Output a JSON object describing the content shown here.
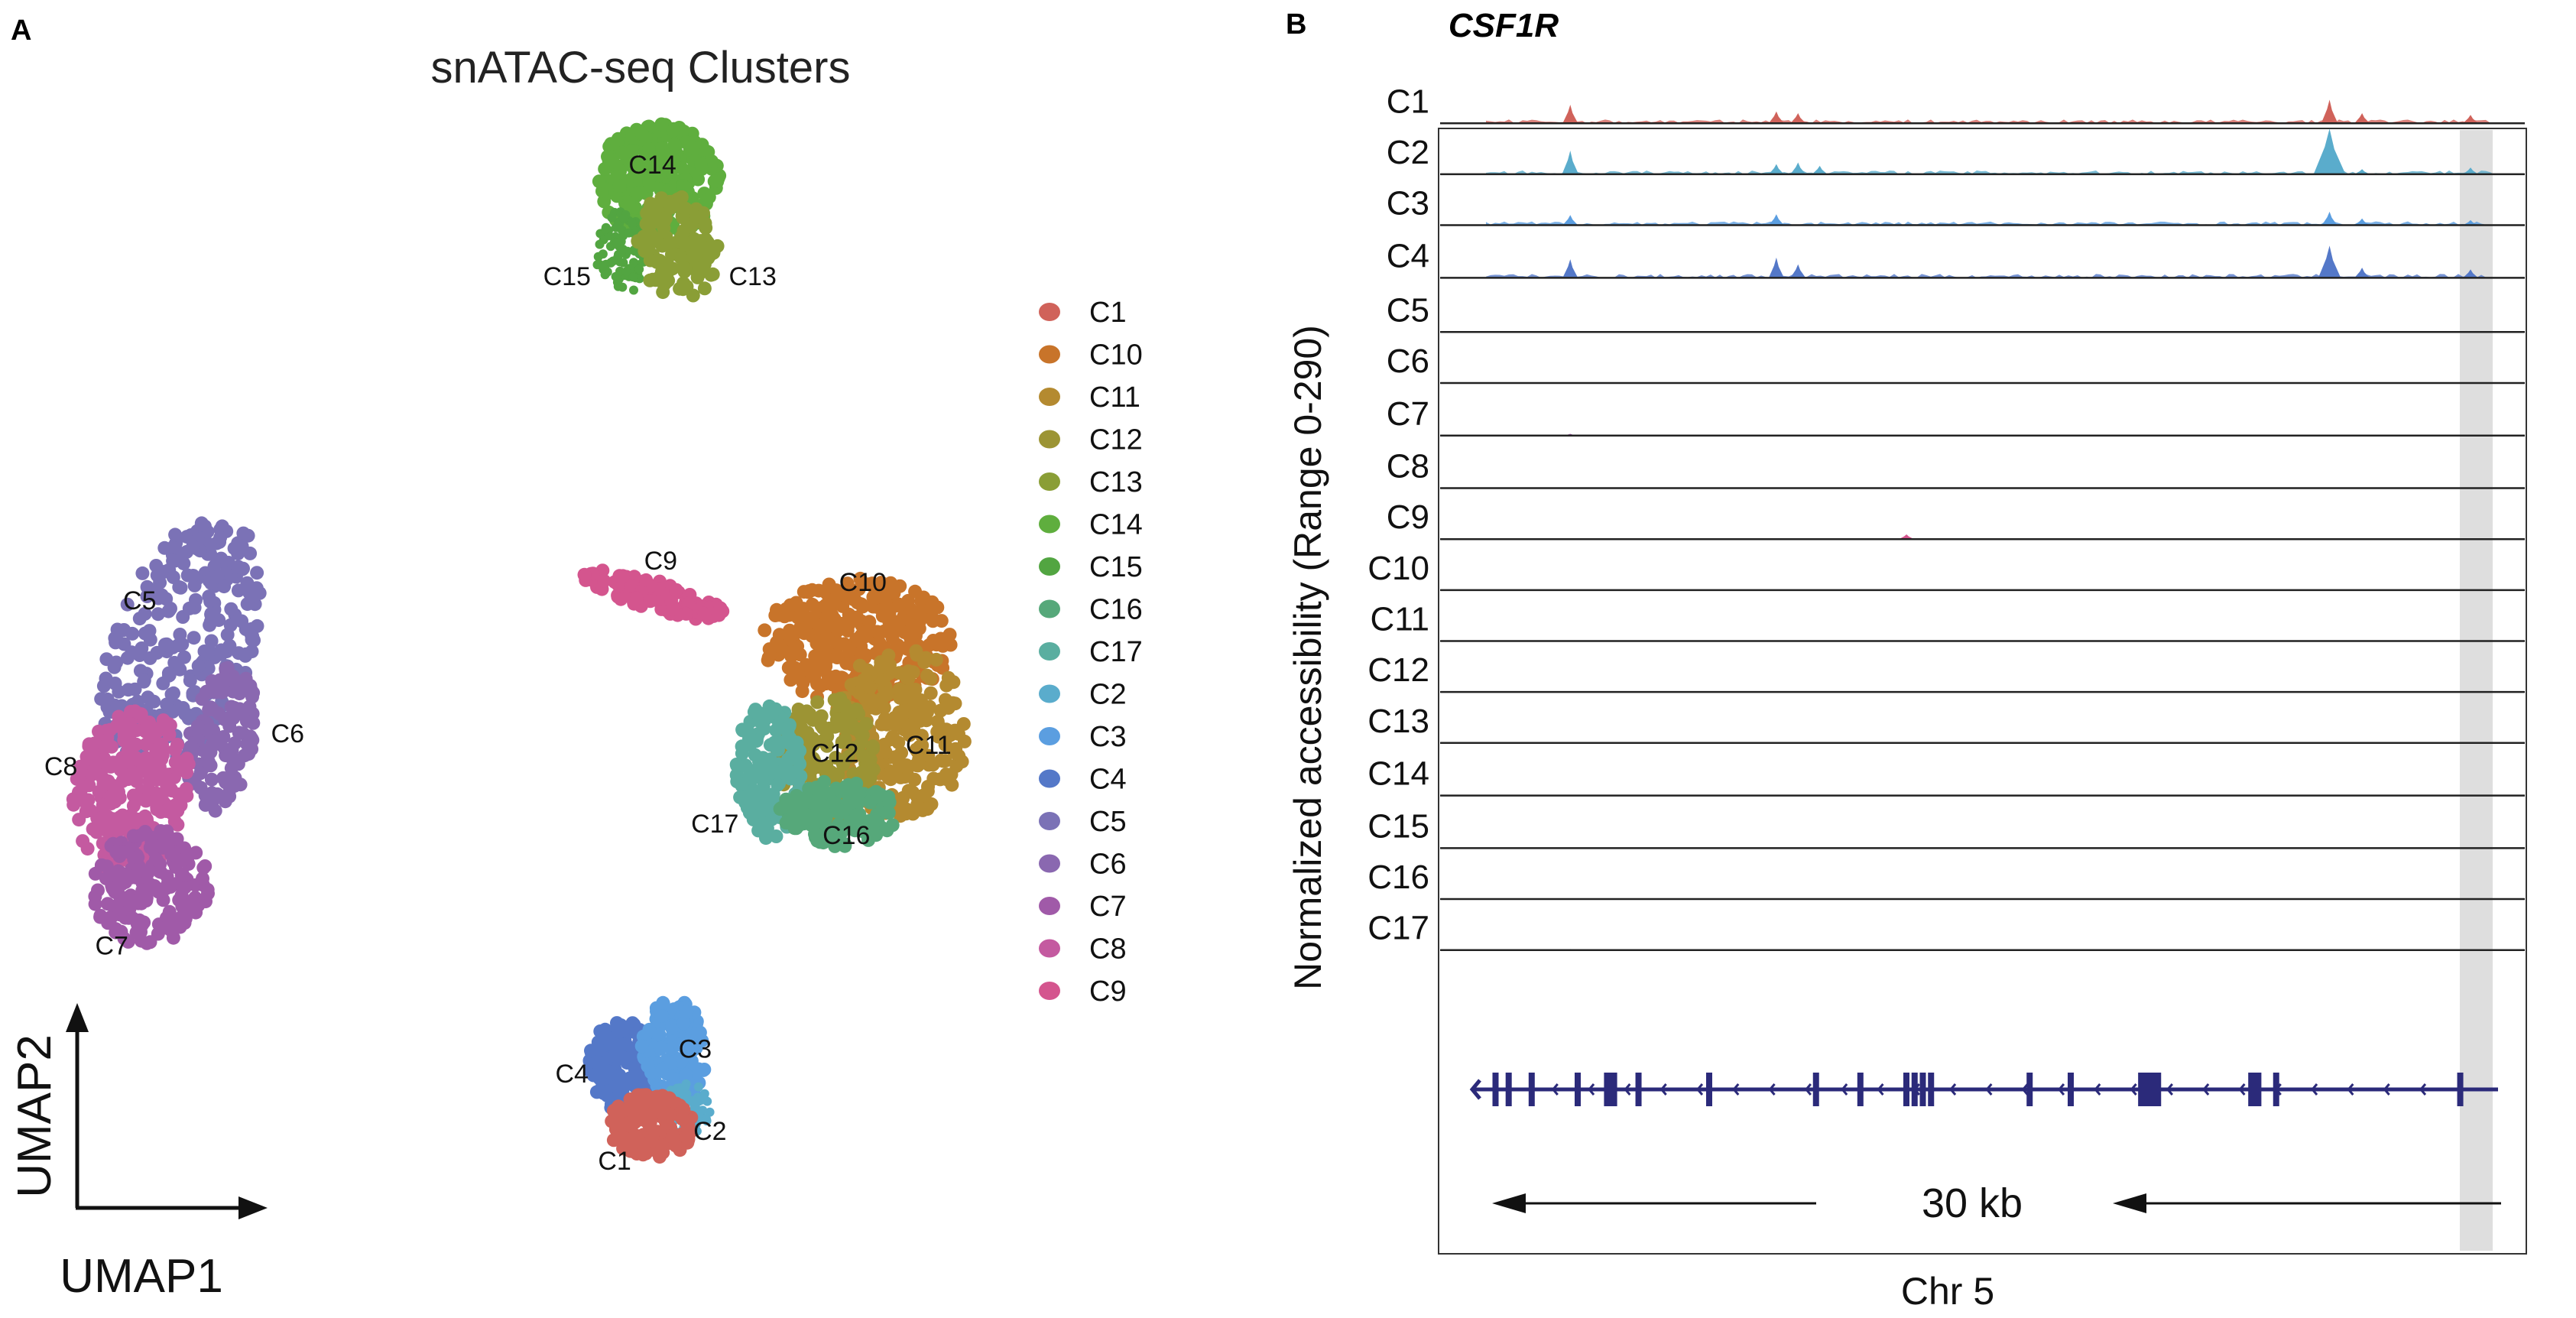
{
  "panel_a": {
    "letter": "A",
    "title": "snATAC-seq Clusters",
    "x_axis_label": "UMAP1",
    "y_axis_label": "UMAP2"
  },
  "panel_b": {
    "letter": "B",
    "title": "CSF1R",
    "y_axis_label": "Normalized accessibility (Range 0-290)",
    "x_axis_label": "Chr 5",
    "scale_bar_label": "30 kb"
  },
  "chart_data": [
    {
      "type": "scatter",
      "title": "snATAC-seq Clusters",
      "xlabel": "UMAP1",
      "ylabel": "UMAP2",
      "legend_position": "right",
      "grid": false,
      "legend": [
        {
          "name": "C1",
          "color": "#d0625a"
        },
        {
          "name": "C10",
          "color": "#c8742a"
        },
        {
          "name": "C11",
          "color": "#b48a30"
        },
        {
          "name": "C12",
          "color": "#9c9434"
        },
        {
          "name": "C13",
          "color": "#8a9e36"
        },
        {
          "name": "C14",
          "color": "#5fae3e"
        },
        {
          "name": "C15",
          "color": "#52a541"
        },
        {
          "name": "C16",
          "color": "#56a87a"
        },
        {
          "name": "C17",
          "color": "#5aaea0"
        },
        {
          "name": "C2",
          "color": "#5aaccc"
        },
        {
          "name": "C3",
          "color": "#5b9ee0"
        },
        {
          "name": "C4",
          "color": "#5478c8"
        },
        {
          "name": "C5",
          "color": "#7b72b6"
        },
        {
          "name": "C6",
          "color": "#8a68b0"
        },
        {
          "name": "C7",
          "color": "#a05aa8"
        },
        {
          "name": "C8",
          "color": "#c45aa0"
        },
        {
          "name": "C9",
          "color": "#d4558e"
        }
      ],
      "cluster_labels": [
        "C14",
        "C15",
        "C13",
        "C5",
        "C6",
        "C8",
        "C7",
        "C9",
        "C10",
        "C11",
        "C12",
        "C17",
        "C16",
        "C3",
        "C4",
        "C2",
        "C1"
      ]
    },
    {
      "type": "area",
      "title": "CSF1R",
      "ylabel": "Normalized accessibility (Range 0-290)",
      "xlabel": "Chr 5",
      "ylim": [
        0,
        290
      ],
      "highlight": "grey band near right end of locus",
      "tracks": [
        {
          "name": "C1",
          "color": "#d0625a",
          "peaks": [
            [
              12,
              110
            ],
            [
              31,
              70
            ],
            [
              33,
              60
            ],
            [
              82,
              140
            ],
            [
              85,
              60
            ],
            [
              95,
              50
            ]
          ]
        },
        {
          "name": "C2",
          "color": "#5aaccc",
          "peaks": [
            [
              12,
              140
            ],
            [
              31,
              60
            ],
            [
              33,
              70
            ],
            [
              35,
              50
            ],
            [
              82,
              270
            ],
            [
              85,
              30
            ],
            [
              95,
              40
            ]
          ]
        },
        {
          "name": "C3",
          "color": "#5b9ee0",
          "peaks": [
            [
              12,
              60
            ],
            [
              31,
              65
            ],
            [
              82,
              80
            ],
            [
              85,
              40
            ],
            [
              95,
              30
            ]
          ]
        },
        {
          "name": "C4",
          "color": "#5478c8",
          "peaks": [
            [
              12,
              110
            ],
            [
              31,
              120
            ],
            [
              33,
              80
            ],
            [
              82,
              190
            ],
            [
              85,
              60
            ],
            [
              95,
              50
            ]
          ]
        },
        {
          "name": "C5",
          "color": "#7b72b6",
          "peaks": []
        },
        {
          "name": "C6",
          "color": "#8a68b0",
          "peaks": []
        },
        {
          "name": "C7",
          "color": "#a05aa8",
          "peaks": [
            [
              12,
              10
            ]
          ]
        },
        {
          "name": "C8",
          "color": "#c45aa0",
          "peaks": []
        },
        {
          "name": "C9",
          "color": "#d4558e",
          "peaks": [
            [
              43,
              28
            ]
          ]
        },
        {
          "name": "C10",
          "color": "#c8742a",
          "peaks": []
        },
        {
          "name": "C11",
          "color": "#b48a30",
          "peaks": []
        },
        {
          "name": "C12",
          "color": "#9c9434",
          "peaks": []
        },
        {
          "name": "C13",
          "color": "#8a9e36",
          "peaks": []
        },
        {
          "name": "C14",
          "color": "#5fae3e",
          "peaks": []
        },
        {
          "name": "C15",
          "color": "#52a541",
          "peaks": []
        },
        {
          "name": "C16",
          "color": "#56a87a",
          "peaks": [
            [
              12,
              5
            ]
          ]
        },
        {
          "name": "C17",
          "color": "#5aaea0",
          "peaks": [
            [
              12,
              6
            ],
            [
              31,
              5
            ]
          ]
        }
      ],
      "gene_color": "#2b2a7a",
      "strand": "minus"
    }
  ]
}
